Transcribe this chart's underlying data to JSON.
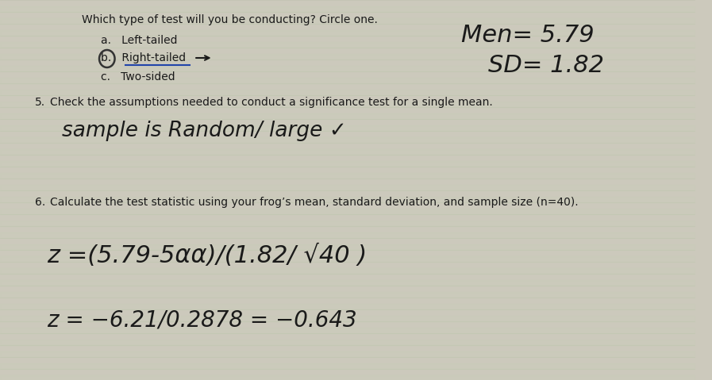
{
  "background_color": "#ccc9bc",
  "line_color": "#b8b5a8",
  "title_text": "Which type of test will you be conducting? Circle one.",
  "option_a": "a.   Left-tailed",
  "option_b": "b.   Right-tailed",
  "option_b_underline_color": "#2244aa",
  "option_c": "c.   Two-sided",
  "mean_line1": "Men= 5.79",
  "mean_line2": "SD= 1.82",
  "q5_label": "5.",
  "q5_text": "Check the assumptions needed to conduct a significance test for a single mean.",
  "q5_handwritten": "sample is Random/ large ✓",
  "q6_label": "6.",
  "q6_text": "Calculate the test statistic using your frog’s mean, standard deviation, and sample size (n=40).",
  "q6_line1": "z =(5.79-5αα)/(1.82/ √40 )",
  "q6_line2": "z = -6.21/0.2878 = -0.643"
}
